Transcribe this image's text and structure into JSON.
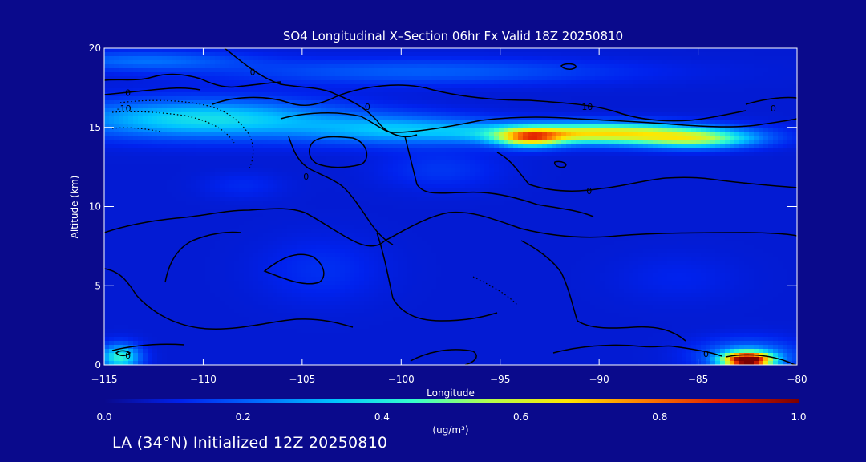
{
  "footer_text": "LA (34°N) Initialized 12Z 20250810",
  "colors": {
    "background": "#0a0a8c",
    "axis": "#ffffff",
    "contour": "#000000",
    "colormap": [
      "#0a0a8c",
      "#0022ee",
      "#006cff",
      "#00c6ff",
      "#35ffcc",
      "#b4ff4b",
      "#ffe600",
      "#ff7d00",
      "#e11e00",
      "#7c0000"
    ]
  },
  "chart_data": {
    "type": "heatmap",
    "title": "SO4 Longitudinal X–Section 06hr  Fx Valid 18Z 20250810",
    "xlabel": "Longitude",
    "ylabel": "Altitude (km)",
    "xlim": [
      -115,
      -80
    ],
    "ylim": [
      0,
      20
    ],
    "xticks": [
      -115,
      -110,
      -105,
      -100,
      -95,
      -90,
      -85,
      -80
    ],
    "xtick_labels": [
      "−115",
      "−110",
      "−105",
      "−100",
      "−95",
      "−90",
      "−85",
      "−80"
    ],
    "yticks": [
      0,
      5,
      10,
      15,
      20
    ],
    "ytick_labels": [
      "0",
      "5",
      "10",
      "15",
      "20"
    ],
    "colorbar": {
      "min": 0.0,
      "max": 1.0,
      "units": "(ug/m³)",
      "ticks": [
        0.0,
        0.2,
        0.4,
        0.6,
        0.8,
        1.0
      ],
      "tick_labels": [
        "0.0",
        "0.2",
        "0.4",
        "0.6",
        "0.8",
        "1.0"
      ]
    },
    "background_level": 0.08,
    "features": [
      {
        "lon": -110,
        "alt": 15.5,
        "slon": 7,
        "salt": 1.2,
        "value": 0.3
      },
      {
        "lon": -100,
        "alt": 14.8,
        "slon": 5,
        "salt": 0.9,
        "value": 0.22
      },
      {
        "lon": -90,
        "alt": 14.6,
        "slon": 5.5,
        "salt": 0.65,
        "value": 0.58
      },
      {
        "lon": -85,
        "alt": 14.2,
        "slon": 3,
        "salt": 0.55,
        "value": 0.35
      },
      {
        "lon": -93.5,
        "alt": 14.3,
        "slon": 1.6,
        "salt": 0.55,
        "value": 0.45
      },
      {
        "lon": -99,
        "alt": 18.5,
        "slon": 10,
        "salt": 0.8,
        "value": 0.12
      },
      {
        "lon": -113,
        "alt": 19.2,
        "slon": 5,
        "salt": 0.6,
        "value": 0.14
      },
      {
        "lon": -98,
        "alt": 12.3,
        "slon": 3,
        "salt": 1.2,
        "value": 0.06
      },
      {
        "lon": -104,
        "alt": 6,
        "slon": 3,
        "salt": 2,
        "value": 0.05
      },
      {
        "lon": -86,
        "alt": 5.5,
        "slon": 3,
        "salt": 1.5,
        "value": 0.03
      },
      {
        "lon": -108,
        "alt": 11.3,
        "slon": 2,
        "salt": 0.8,
        "value": 0.04
      },
      {
        "lon": -82.5,
        "alt": 0.3,
        "slon": 1.2,
        "salt": 0.5,
        "value": 0.9
      },
      {
        "lon": -82.5,
        "alt": 0.6,
        "slon": 2.5,
        "salt": 1.0,
        "value": 0.18
      },
      {
        "lon": -114.2,
        "alt": 0.5,
        "slon": 1.0,
        "salt": 0.8,
        "value": 0.35
      }
    ],
    "contour_labels": [
      {
        "text": "0",
        "lon": -107.5,
        "alt": 18.5
      },
      {
        "text": "0",
        "lon": -113.8,
        "alt": 17.2
      },
      {
        "text": "-10",
        "lon": -114,
        "alt": 16.2
      },
      {
        "text": "0",
        "lon": -101.7,
        "alt": 16.3
      },
      {
        "text": "10",
        "lon": -90.6,
        "alt": 16.3
      },
      {
        "text": "0",
        "lon": -81.2,
        "alt": 16.2
      },
      {
        "text": "0",
        "lon": -104.8,
        "alt": 11.9
      },
      {
        "text": "0",
        "lon": -90.5,
        "alt": 11.0
      },
      {
        "text": "0",
        "lon": -84.6,
        "alt": 0.7
      },
      {
        "text": "0",
        "lon": -113.8,
        "alt": 0.6
      }
    ]
  }
}
